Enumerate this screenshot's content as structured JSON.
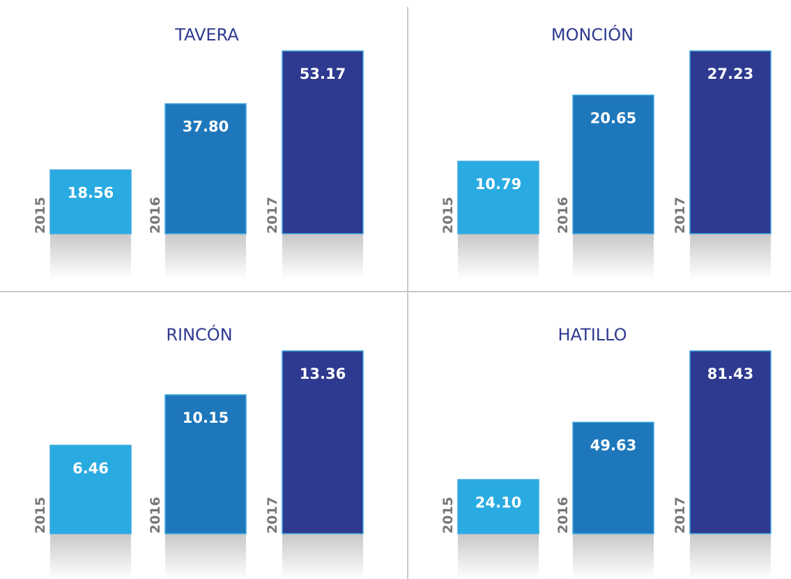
{
  "chart_data": [
    {
      "type": "bar",
      "title": "TAVERA",
      "categories": [
        "2015",
        "2016",
        "2017"
      ],
      "values": [
        18.56,
        37.8,
        53.17
      ],
      "value_labels": [
        "18.56",
        "37.80",
        "53.17"
      ],
      "colors": [
        "#29abe2",
        "#1f77bb",
        "#2e3a8f"
      ]
    },
    {
      "type": "bar",
      "title": "MONCIÓN",
      "categories": [
        "2015",
        "2016",
        "2017"
      ],
      "values": [
        10.79,
        20.65,
        27.23
      ],
      "value_labels": [
        "10.79",
        "20.65",
        "27.23"
      ],
      "colors": [
        "#29abe2",
        "#1f77bb",
        "#2e3a8f"
      ]
    },
    {
      "type": "bar",
      "title": "RINCÓN",
      "categories": [
        "2015",
        "2016",
        "2017"
      ],
      "values": [
        6.46,
        10.15,
        13.36
      ],
      "value_labels": [
        "6.46",
        "10.15",
        "13.36"
      ],
      "colors": [
        "#29abe2",
        "#1f77bb",
        "#2e3a8f"
      ]
    },
    {
      "type": "bar",
      "title": "HATILLO",
      "categories": [
        "2015",
        "2016",
        "2017"
      ],
      "values": [
        24.1,
        49.63,
        81.43
      ],
      "value_labels": [
        "24.10",
        "49.63",
        "81.43"
      ],
      "colors": [
        "#29abe2",
        "#1f77bb",
        "#2e3a8f"
      ]
    }
  ]
}
